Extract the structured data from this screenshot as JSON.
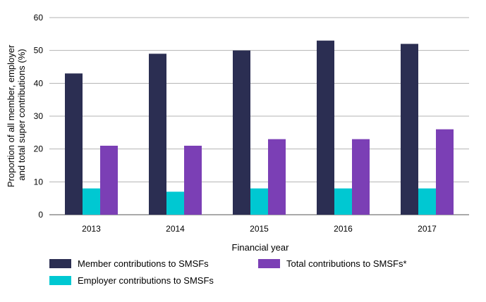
{
  "chart_data": {
    "type": "bar",
    "categories": [
      "2013",
      "2014",
      "2015",
      "2016",
      "2017"
    ],
    "series": [
      {
        "name": "Member contributions to SMSFs",
        "values": [
          43,
          49,
          50,
          53,
          52
        ],
        "color": "#2b2e52"
      },
      {
        "name": "Employer contributions to SMSFs",
        "values": [
          8,
          7,
          8,
          8,
          8
        ],
        "color": "#00c8d2"
      },
      {
        "name": "Total contributions to SMSFs*",
        "values": [
          21,
          21,
          23,
          23,
          26
        ],
        "color": "#7b3fb5"
      }
    ],
    "xlabel": "Financial year",
    "ylabel_lines": [
      "Proportion of all member, employer",
      "and total super contributions (%)"
    ],
    "ylim": [
      0,
      60
    ],
    "yticks": [
      0,
      10,
      20,
      30,
      40,
      50,
      60
    ],
    "grid": true,
    "legend_position": "bottom"
  }
}
